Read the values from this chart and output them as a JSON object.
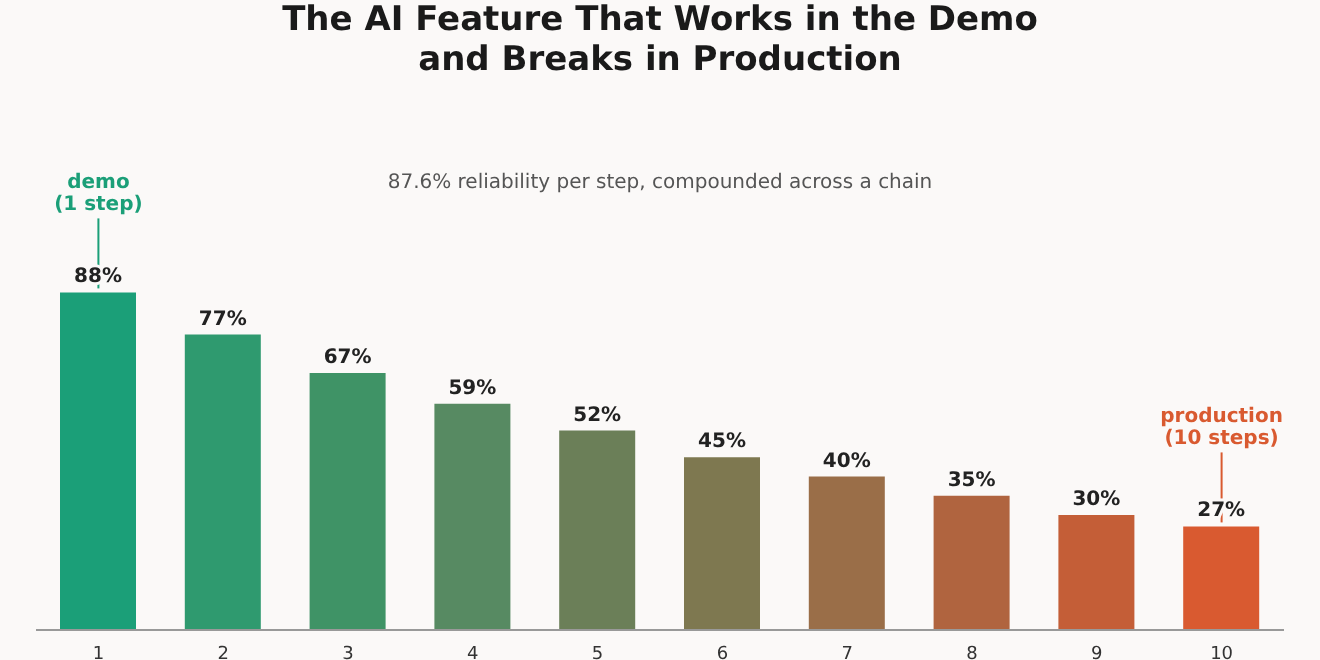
{
  "chart_data": {
    "type": "bar",
    "title": "The AI Feature That Works in the Demo\nand Breaks in Production",
    "subtitle": "87.6% reliability per step, compounded across a chain",
    "categories": [
      "1",
      "2",
      "3",
      "4",
      "5",
      "6",
      "7",
      "8",
      "9",
      "10"
    ],
    "values": [
      88,
      77,
      67,
      59,
      52,
      45,
      40,
      35,
      30,
      27
    ],
    "value_labels": [
      "88%",
      "77%",
      "67%",
      "59%",
      "52%",
      "45%",
      "40%",
      "35%",
      "30%",
      "27%"
    ],
    "colors": [
      "#1b9f78",
      "#2f9a6f",
      "#3f9366",
      "#578a62",
      "#6b7f58",
      "#7e7850",
      "#9a6e48",
      "#b0643f",
      "#c45e37",
      "#d95a30"
    ],
    "annotations": [
      {
        "text": "demo\n(1 step)",
        "x": "1",
        "y": 88
      },
      {
        "text": "production\n(10 steps)",
        "x": "10",
        "y": 27
      }
    ],
    "grid": false,
    "legend": false
  }
}
